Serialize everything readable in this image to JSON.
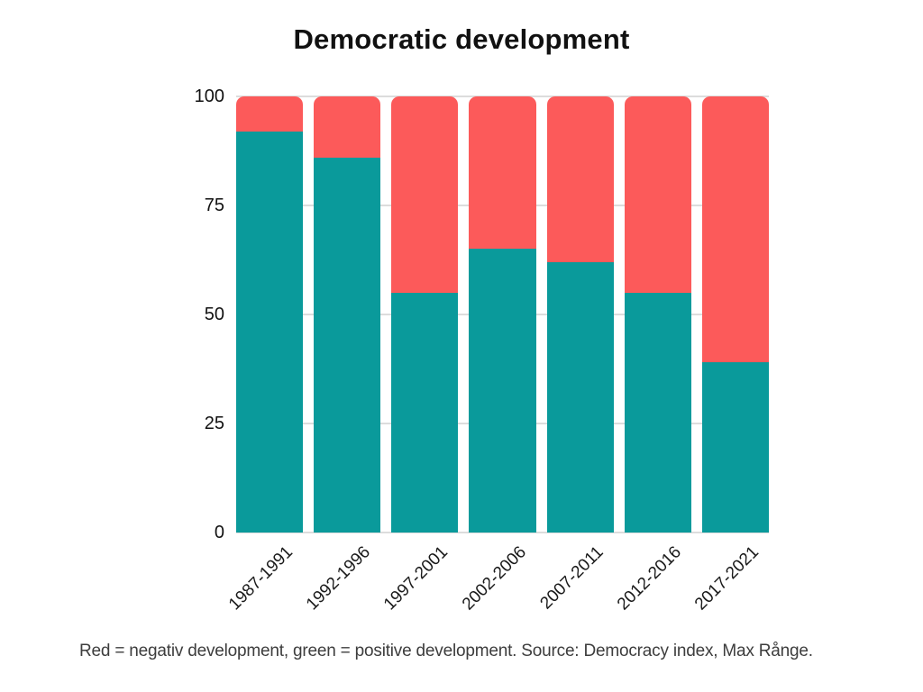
{
  "page": {
    "background": "#ffffff"
  },
  "chart_data": {
    "type": "bar",
    "stacked": true,
    "title": "Democratic development",
    "categories": [
      "1987-1991",
      "1992-1996",
      "1997-2001",
      "2002-2006",
      "2007-2011",
      "2012-2016",
      "2017-2021"
    ],
    "series": [
      {
        "name": "positive development",
        "color": "#0a9a9b",
        "values": [
          92,
          86,
          55,
          65,
          62,
          55,
          39
        ]
      },
      {
        "name": "negative development",
        "color": "#fc5a5a",
        "values": [
          8,
          14,
          45,
          35,
          38,
          45,
          61
        ]
      }
    ],
    "xlabel": "",
    "ylabel": "",
    "ylim": [
      0,
      100
    ],
    "yticks": [
      0,
      25,
      50,
      75,
      100
    ],
    "grid": "horizontal",
    "gridline_color": "#dcdcdc",
    "legend": "none",
    "caption": "Red = negativ development, green = positive development. Source: Democracy index, Max Rånge."
  }
}
